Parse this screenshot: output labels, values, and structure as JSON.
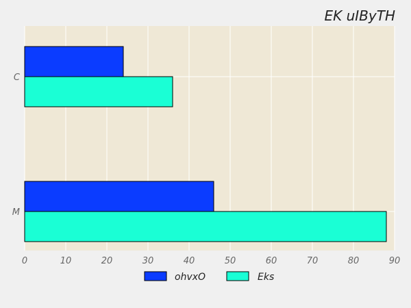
{
  "chart_data": {
    "type": "bar",
    "orientation": "horizontal",
    "title": "EK uIByTH",
    "categories": [
      "C",
      "M"
    ],
    "series": [
      {
        "name": "ohvxO",
        "values": [
          24,
          46
        ],
        "color": "#0b3cff"
      },
      {
        "name": "Eks",
        "values": [
          36,
          88
        ],
        "color": "#1affd5"
      }
    ],
    "xlim": [
      0,
      90
    ],
    "xticks": [
      0,
      10,
      20,
      30,
      40,
      50,
      60,
      70,
      80,
      90
    ],
    "xlabel": "",
    "ylabel": "",
    "grid": true,
    "legend_position": "bottom-center",
    "colors": {
      "plot_background": "#efe8d6",
      "figure_background": "#f0f0f0",
      "grid": "#ffffff",
      "bar_edge": "#000000"
    }
  }
}
